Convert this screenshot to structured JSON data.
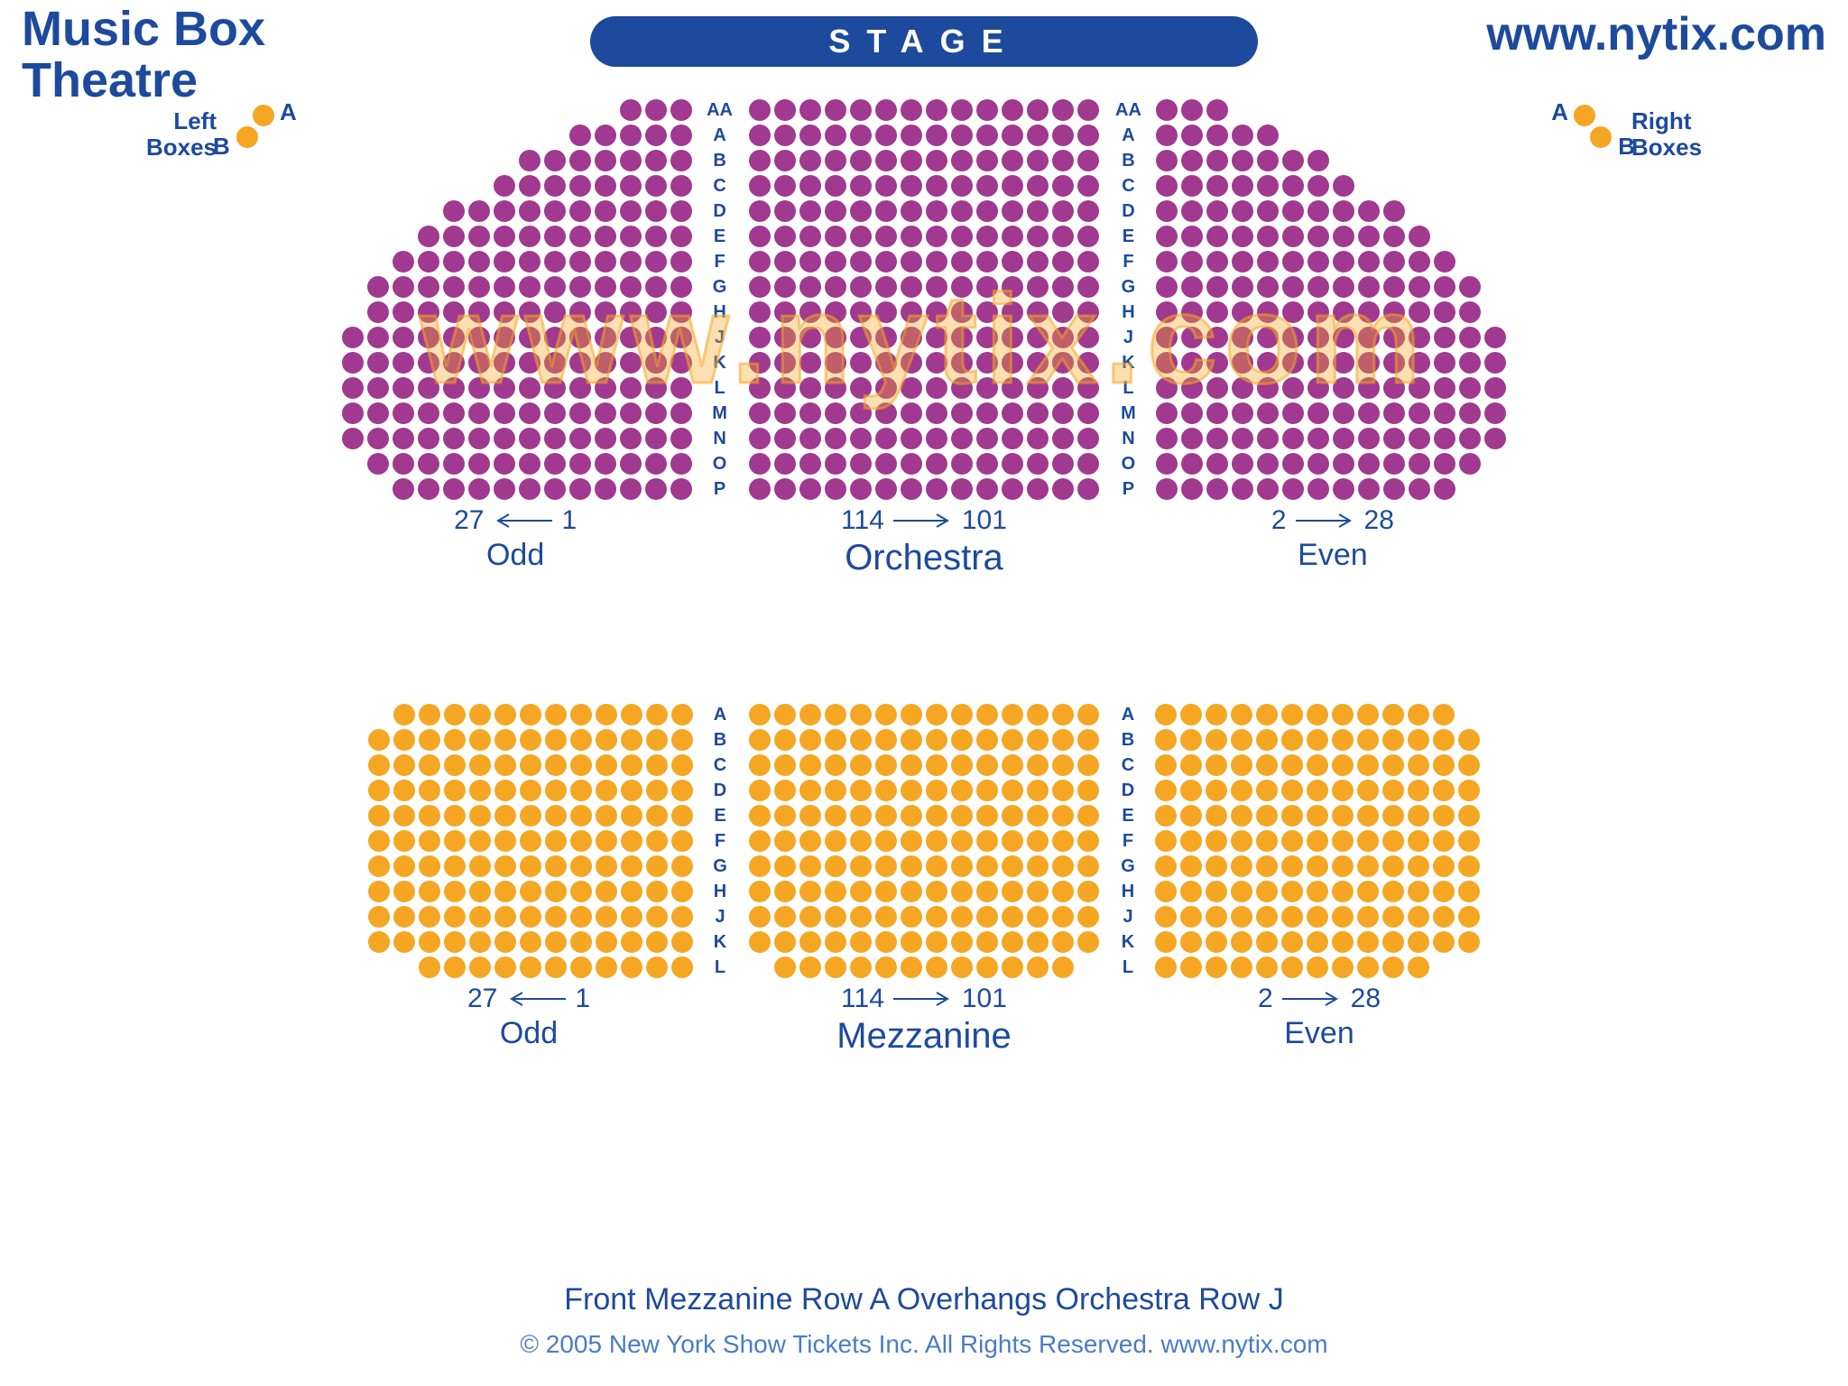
{
  "header": {
    "title_line1": "Music Box",
    "title_line2": "Theatre",
    "url": "www.nytix.com",
    "stage_label": "STAGE"
  },
  "colors": {
    "brand": "#1d4a9c",
    "orchestra_seat": "#a0398f",
    "mezzanine_seat": "#f5a623",
    "box_seat": "#f5a623",
    "background": "#ffffff"
  },
  "boxes": {
    "left_label": "Left\nBoxes",
    "right_label": "Right\nBoxes",
    "a": "A",
    "b": "B"
  },
  "orchestra": {
    "row_labels": [
      "AA",
      "A",
      "B",
      "C",
      "D",
      "E",
      "F",
      "G",
      "H",
      "J",
      "K",
      "L",
      "M",
      "N",
      "O",
      "P"
    ],
    "left_side": {
      "align": "right",
      "rows": [
        3,
        5,
        7,
        8,
        10,
        11,
        12,
        13,
        13,
        14,
        14,
        14,
        14,
        14,
        13,
        12
      ]
    },
    "center": {
      "align": "center",
      "rows": [
        14,
        14,
        14,
        14,
        14,
        14,
        14,
        14,
        14,
        14,
        14,
        14,
        14,
        14,
        14,
        14
      ]
    },
    "right_side": {
      "align": "left",
      "rows": [
        3,
        5,
        7,
        8,
        10,
        11,
        12,
        13,
        13,
        14,
        14,
        14,
        14,
        14,
        13,
        12
      ]
    },
    "labels": {
      "left_from": "27",
      "left_to": "1",
      "left_arrow": "left",
      "left_name": "Odd",
      "center_from": "114",
      "center_to": "101",
      "center_arrow": "right",
      "center_name": "Orchestra",
      "right_from": "2",
      "right_to": "28",
      "right_arrow": "right",
      "right_name": "Even"
    }
  },
  "mezzanine": {
    "row_labels": [
      "A",
      "B",
      "C",
      "D",
      "E",
      "F",
      "G",
      "H",
      "J",
      "K",
      "L"
    ],
    "left_side": {
      "align": "right",
      "rows": [
        12,
        13,
        13,
        13,
        13,
        13,
        13,
        13,
        13,
        13,
        11
      ]
    },
    "center": {
      "align": "center",
      "rows": [
        14,
        14,
        14,
        14,
        14,
        14,
        14,
        14,
        14,
        14,
        12
      ]
    },
    "right_side": {
      "align": "left",
      "rows": [
        12,
        13,
        13,
        13,
        13,
        13,
        13,
        13,
        13,
        13,
        11
      ]
    },
    "labels": {
      "left_from": "27",
      "left_to": "1",
      "left_arrow": "left",
      "left_name": "Odd",
      "center_from": "114",
      "center_to": "101",
      "center_arrow": "right",
      "center_name": "Mezzanine",
      "right_from": "2",
      "right_to": "28",
      "right_arrow": "right",
      "right_name": "Even"
    }
  },
  "watermark": "www.nytix.com",
  "footer": {
    "overhang": "Front Mezzanine Row A Overhangs Orchestra Row J",
    "copyright": "© 2005 New York Show Tickets Inc. All Rights Reserved.   www.nytix.com"
  }
}
